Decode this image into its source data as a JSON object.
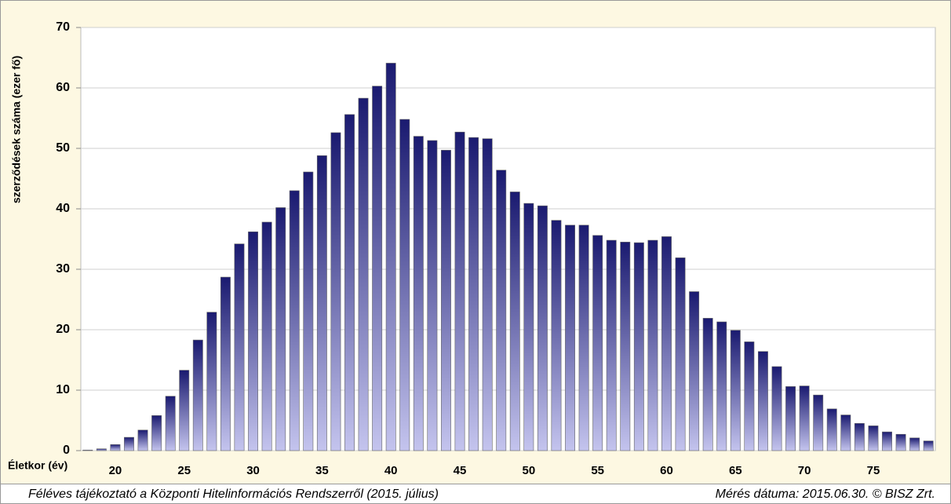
{
  "chart_data": {
    "type": "bar",
    "y_label": "szerződések száma (ezer fő)",
    "x_label": "Életkor (év)",
    "footer_left": "Féléves tájékoztató a Központi Hitelinformációs Rendszerről (2015. július)",
    "footer_right": "Mérés dátuma: 2015.06.30. © BISZ Zrt.",
    "categories": [
      null,
      null,
      "20",
      null,
      null,
      null,
      null,
      "25",
      null,
      null,
      null,
      null,
      "30",
      null,
      null,
      null,
      null,
      "35",
      null,
      null,
      null,
      null,
      "40",
      null,
      null,
      null,
      null,
      "45",
      null,
      null,
      null,
      null,
      "50",
      null,
      null,
      null,
      null,
      "55",
      null,
      null,
      null,
      null,
      "60",
      null,
      null,
      null,
      null,
      "65",
      null,
      null,
      null,
      null,
      "70",
      null,
      null,
      null,
      null,
      "75",
      null,
      null,
      null,
      null
    ],
    "values": [
      0.1,
      0.3,
      1.0,
      2.2,
      3.4,
      5.8,
      9.0,
      13.3,
      18.3,
      22.9,
      28.7,
      34.2,
      36.2,
      37.8,
      40.2,
      43.0,
      46.1,
      48.8,
      52.6,
      55.6,
      58.3,
      60.3,
      64.1,
      54.8,
      52.0,
      51.3,
      49.7,
      52.7,
      51.8,
      51.6,
      46.4,
      42.8,
      40.9,
      40.5,
      38.1,
      37.3,
      37.3,
      35.6,
      34.8,
      34.5,
      34.4,
      34.8,
      35.4,
      31.9,
      26.3,
      21.9,
      21.3,
      19.9,
      18.0,
      16.4,
      13.9,
      10.6,
      10.7,
      9.2,
      6.9,
      5.9,
      4.5,
      4.1,
      3.1,
      2.7,
      2.1,
      1.6
    ],
    "color": "#1a1a70",
    "gradient_to": "#c4c4ee",
    "ylim": [
      0,
      70
    ],
    "yticks": [
      0,
      10,
      20,
      30,
      40,
      50,
      60,
      70
    ],
    "grid": true
  }
}
